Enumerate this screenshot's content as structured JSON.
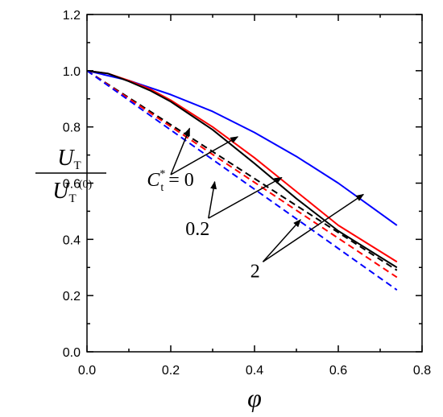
{
  "chart_data": {
    "type": "line",
    "title": "",
    "xlabel": "φ",
    "ylabel": {
      "numerator": "U",
      "numerator_sub": "T",
      "denominator": "U",
      "denominator_sub": "T",
      "denominator_sup": "(0)"
    },
    "xlim": [
      0,
      0.8
    ],
    "ylim": [
      0,
      1.2
    ],
    "xticks": [
      "0.0",
      "0.2",
      "0.4",
      "0.6",
      "0.8"
    ],
    "yticks": [
      "0.0",
      "0.2",
      "0.4",
      "0.6",
      "0.8",
      "1.0",
      "1.2"
    ],
    "grid": false,
    "legend": "none",
    "series": [
      {
        "color": "#0000ff",
        "style": "solid",
        "x": [
          0,
          0.1,
          0.2,
          0.3,
          0.4,
          0.5,
          0.6,
          0.74
        ],
        "y": [
          1.0,
          0.965,
          0.915,
          0.855,
          0.78,
          0.695,
          0.6,
          0.45
        ]
      },
      {
        "color": "#ff0000",
        "style": "solid",
        "x": [
          0,
          0.05,
          0.1,
          0.15,
          0.2,
          0.3,
          0.4,
          0.5,
          0.6,
          0.74
        ],
        "y": [
          1.0,
          0.99,
          0.965,
          0.935,
          0.895,
          0.8,
          0.69,
          0.57,
          0.45,
          0.32
        ]
      },
      {
        "color": "#000000",
        "style": "solid",
        "x": [
          0,
          0.05,
          0.1,
          0.15,
          0.2,
          0.3,
          0.4,
          0.5,
          0.6,
          0.74
        ],
        "y": [
          1.0,
          0.99,
          0.962,
          0.93,
          0.89,
          0.79,
          0.67,
          0.545,
          0.43,
          0.3
        ]
      },
      {
        "color": "#000000",
        "style": "dashed",
        "x": [
          0,
          0.74
        ],
        "y": [
          1.0,
          0.29
        ]
      },
      {
        "color": "#ff0000",
        "style": "dashed",
        "x": [
          0,
          0.74
        ],
        "y": [
          1.0,
          0.265
        ]
      },
      {
        "color": "#0000ff",
        "style": "dashed",
        "x": [
          0,
          0.74
        ],
        "y": [
          1.0,
          0.22
        ]
      }
    ],
    "annotations": [
      {
        "label": "C",
        "label_sup": "*",
        "label_sub": "t",
        "label_suffix": " = 0",
        "text_at": [
          0.143,
          0.59
        ],
        "from": [
          0.2,
          0.63
        ],
        "arrow_to": [
          [
            0.245,
            0.795
          ],
          [
            0.36,
            0.765
          ]
        ]
      },
      {
        "label": "0.2",
        "text_at": [
          0.235,
          0.415
        ],
        "from": [
          0.29,
          0.475
        ],
        "arrow_to": [
          [
            0.305,
            0.605
          ],
          [
            0.465,
            0.62
          ]
        ]
      },
      {
        "label": "2",
        "text_at": [
          0.39,
          0.265
        ],
        "from": [
          0.42,
          0.32
        ],
        "arrow_to": [
          [
            0.51,
            0.47
          ],
          [
            0.66,
            0.56
          ]
        ]
      }
    ]
  }
}
